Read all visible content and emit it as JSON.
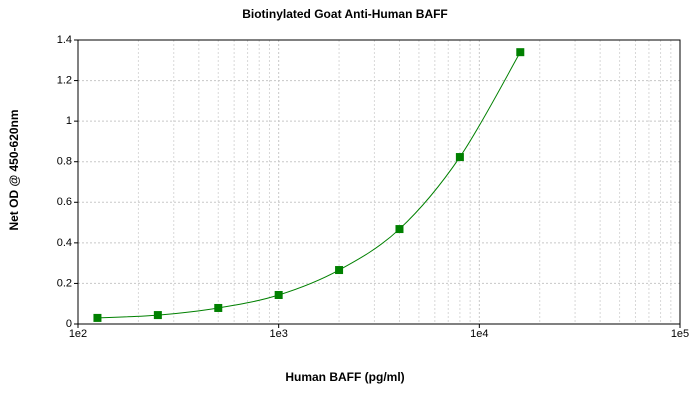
{
  "chart_data": {
    "type": "scatter",
    "title": "Biotinylated Goat Anti-Human BAFF",
    "x_label": "Human BAFF (pg/ml)",
    "y_label": "Net OD @ 450-620nm",
    "x_scale": "log",
    "grid": true,
    "xlim": [
      100,
      100000
    ],
    "xticks": [
      {
        "value": 100,
        "label": "1e2"
      },
      {
        "value": 1000,
        "label": "1e3"
      },
      {
        "value": 10000,
        "label": "1e4"
      },
      {
        "value": 100000,
        "label": "1e5"
      }
    ],
    "ylim": [
      0,
      1.4
    ],
    "yticks": [
      0,
      0.2,
      0.4,
      0.6,
      0.8,
      1,
      1.2,
      1.4
    ],
    "series": [
      {
        "color": "#008000",
        "x": [
          125,
          250,
          500,
          1000,
          2000,
          4000,
          8000,
          16000
        ],
        "values": [
          0.03,
          0.044,
          0.079,
          0.143,
          0.266,
          0.468,
          0.823,
          1.34
        ]
      }
    ]
  }
}
